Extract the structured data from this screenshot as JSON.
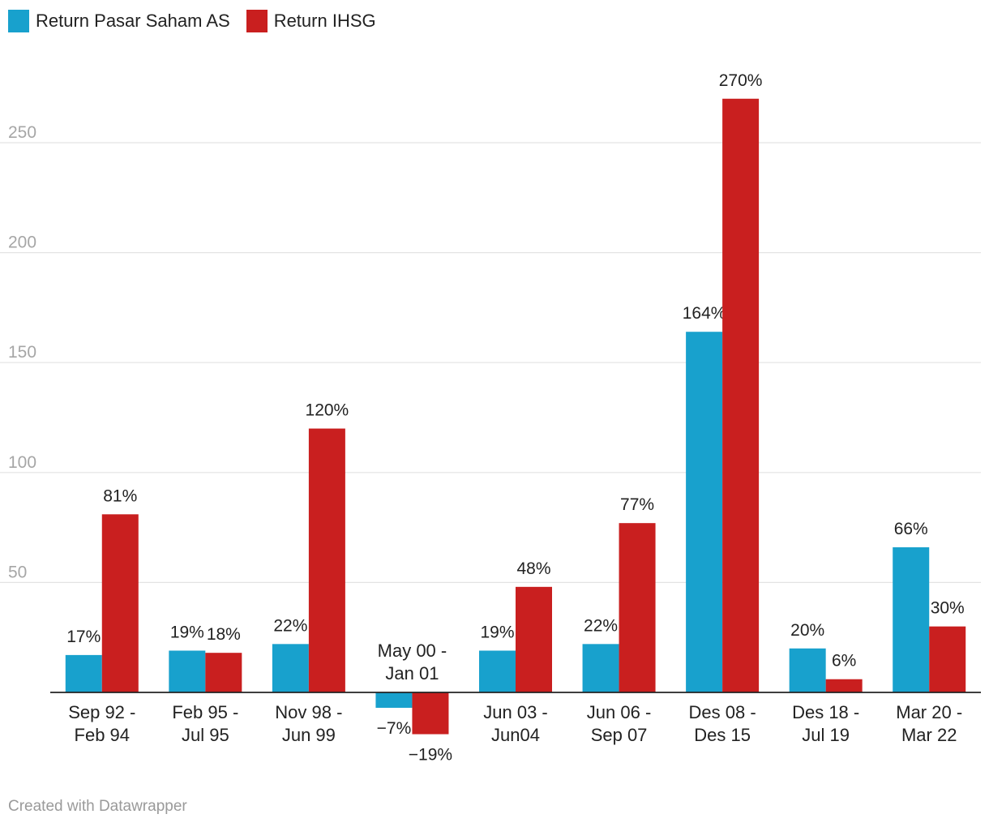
{
  "legend": {
    "items": [
      {
        "label": "Return Pasar Saham AS",
        "color": "#18a1cd"
      },
      {
        "label": "Return IHSG",
        "color": "#c91f1f"
      }
    ]
  },
  "footer": {
    "credit": "Created with Datawrapper"
  },
  "chart_data": {
    "type": "bar",
    "categories": [
      [
        "Sep 92 -",
        "Feb 94"
      ],
      [
        "Feb 95 -",
        "Jul 95"
      ],
      [
        "Nov 98 -",
        "Jun 99"
      ],
      [
        "May 00 -",
        "Jan 01"
      ],
      [
        "Jun 03 -",
        "Jun04"
      ],
      [
        "Jun 06 -",
        "Sep 07"
      ],
      [
        "Des 08 -",
        "Des 15"
      ],
      [
        "Des 18 -",
        "Jul 19"
      ],
      [
        "Mar 20 -",
        "Mar 22"
      ]
    ],
    "series": [
      {
        "name": "Return Pasar Saham AS",
        "color": "#18a1cd",
        "values": [
          17,
          19,
          22,
          -7,
          19,
          22,
          164,
          20,
          66
        ],
        "labels": [
          "17%",
          "19%",
          "22%",
          "−7%",
          "19%",
          "22%",
          "164%",
          "20%",
          "66%"
        ]
      },
      {
        "name": "Return IHSG",
        "color": "#c91f1f",
        "values": [
          81,
          18,
          120,
          -19,
          48,
          77,
          270,
          6,
          30
        ],
        "labels": [
          "81%",
          "18%",
          "120%",
          "−19%",
          "48%",
          "77%",
          "270%",
          "6%",
          "30%"
        ]
      }
    ],
    "yticks": [
      50,
      100,
      150,
      200,
      250
    ],
    "ylim": [
      -19,
      270
    ],
    "grid": true,
    "legend_position": "top-left"
  }
}
